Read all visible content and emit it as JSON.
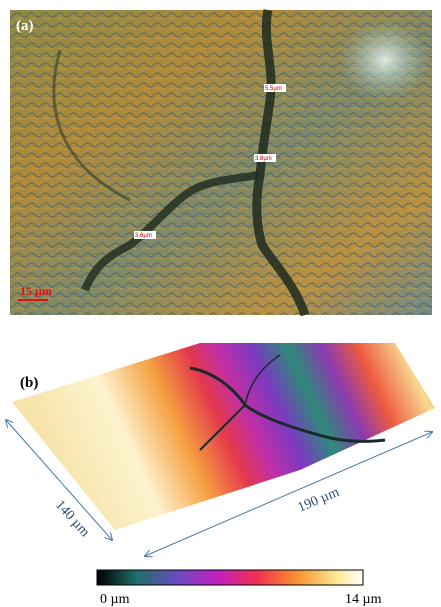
{
  "panel_a": {
    "label": "(a)",
    "measurements": [
      "5.5µm",
      "3.8µm",
      "3.6µm"
    ],
    "scale_bar": "15 µm"
  },
  "panel_b": {
    "label": "(b)",
    "width_label": "140 µm",
    "length_label": "190 µm"
  },
  "colorbar": {
    "min_label": "0 µm",
    "max_label": "14 µm"
  }
}
